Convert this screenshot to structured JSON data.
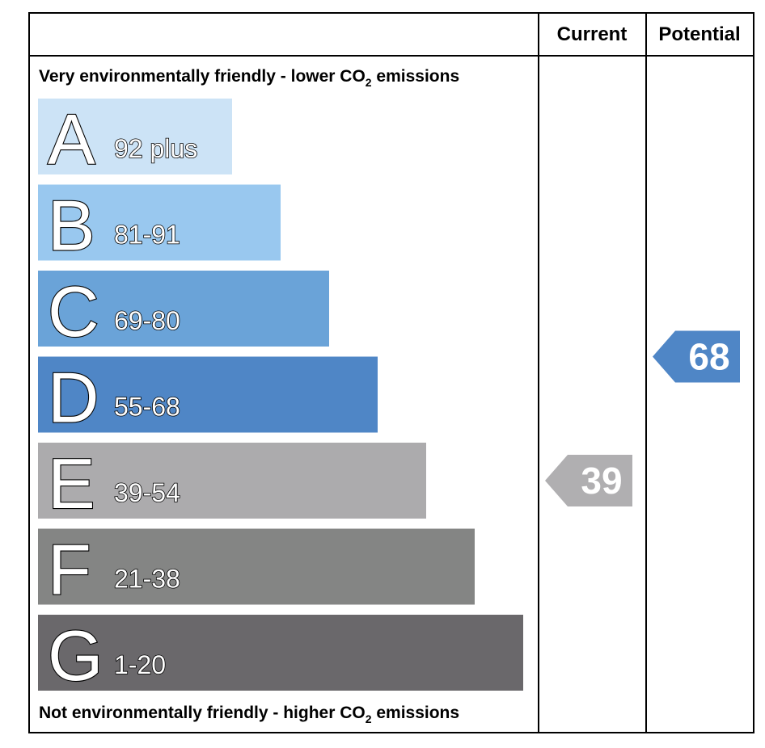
{
  "header": {
    "current_label": "Current",
    "potential_label": "Potential"
  },
  "caption_top": {
    "prefix": "Very environmentally friendly - lower CO",
    "subscript": "2",
    "suffix": " emissions"
  },
  "caption_bottom": {
    "prefix": "Not environmentally friendly - higher CO",
    "subscript": "2",
    "suffix": " emissions"
  },
  "chart_data": {
    "type": "bar",
    "categories": [
      "A",
      "B",
      "C",
      "D",
      "E",
      "F",
      "G"
    ],
    "ranges": [
      "92 plus",
      "81-91",
      "69-80",
      "55-68",
      "39-54",
      "21-38",
      "1-20"
    ],
    "colors": [
      "#cce3f6",
      "#99c8ef",
      "#6aa3d8",
      "#4f86c6",
      "#acabad",
      "#848584",
      "#6a686b"
    ],
    "current": {
      "value": 39,
      "band": "E",
      "color": "#b0afb1"
    },
    "potential": {
      "value": 68,
      "band": "D",
      "color": "#4f86c6"
    }
  }
}
